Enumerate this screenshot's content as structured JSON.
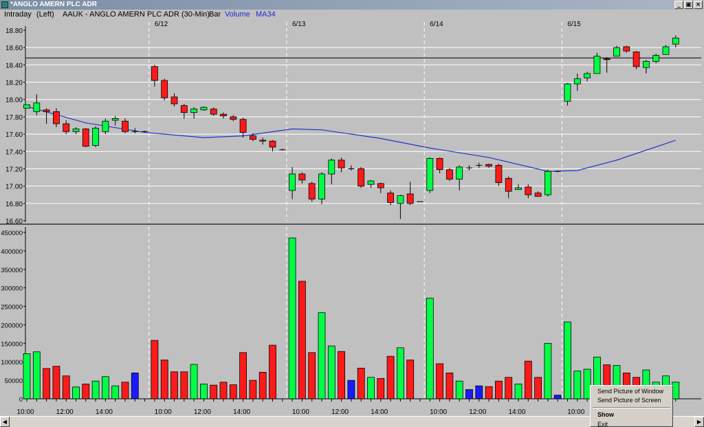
{
  "window": {
    "title": "*ANGLO AMERN PLC ADR",
    "buttons": [
      "_",
      "▣",
      "×"
    ]
  },
  "infobar": {
    "interval": "Intraday",
    "side": "(Left)",
    "symbol": "AAUK - ANGLO AMERN PLC ADR (30-Min)",
    "bar_label": "Bar",
    "volume_label": "Volume",
    "ma_label": "MA34"
  },
  "colors": {
    "up": "#00ff44",
    "down": "#ff1a1a",
    "neutral": "#1a1aff",
    "ma": "#2233cc",
    "grid": "#ffffff",
    "background": "#c0c0c0"
  },
  "chart_data": [
    {
      "type": "candlestick",
      "ylim": [
        16.6,
        18.8
      ],
      "y_ticks": [
        "18.80",
        "18.60",
        "18.40",
        "18.20",
        "18.00",
        "17.80",
        "17.60",
        "17.40",
        "17.20",
        "17.00",
        "16.80",
        "16.60"
      ],
      "tick_values": [
        18.8,
        18.6,
        18.4,
        18.2,
        18.0,
        17.8,
        17.6,
        17.4,
        17.2,
        17.0,
        16.8,
        16.6
      ],
      "date_labels": [
        {
          "label": "6/12",
          "index": 13
        },
        {
          "label": "6/13",
          "index": 27
        },
        {
          "label": "6/14",
          "index": 41
        },
        {
          "label": "6/15",
          "index": 55
        }
      ],
      "reference_line": 18.48,
      "candles": [
        [
          17.9,
          17.94,
          17.86,
          17.86
        ],
        [
          17.86,
          17.96,
          18.06,
          17.82
        ],
        [
          17.88,
          17.86,
          17.9,
          17.72
        ],
        [
          17.86,
          17.72,
          17.9,
          17.68
        ],
        [
          17.72,
          17.63,
          17.76,
          17.6
        ],
        [
          17.63,
          17.66,
          17.68,
          17.6
        ],
        [
          17.66,
          17.46,
          17.67,
          17.45
        ],
        [
          17.47,
          17.67,
          17.69,
          17.45
        ],
        [
          17.63,
          17.75,
          17.78,
          17.6
        ],
        [
          17.76,
          17.78,
          17.81,
          17.7
        ],
        [
          17.75,
          17.63,
          17.78,
          17.61
        ],
        [
          17.63,
          17.63,
          17.67,
          17.61
        ],
        [
          17.63,
          17.63,
          17.64,
          17.62
        ],
        [
          18.38,
          18.22,
          18.4,
          18.15
        ],
        [
          18.22,
          18.02,
          18.24,
          17.99
        ],
        [
          18.03,
          17.95,
          18.07,
          17.92
        ],
        [
          17.93,
          17.85,
          17.95,
          17.78
        ],
        [
          17.85,
          17.89,
          17.91,
          17.78
        ],
        [
          17.88,
          17.91,
          17.92,
          17.87
        ],
        [
          17.89,
          17.83,
          17.91,
          17.81
        ],
        [
          17.83,
          17.81,
          17.85,
          17.78
        ],
        [
          17.8,
          17.77,
          17.82,
          17.75
        ],
        [
          17.77,
          17.62,
          17.79,
          17.56
        ],
        [
          17.58,
          17.54,
          17.61,
          17.52
        ],
        [
          17.53,
          17.52,
          17.56,
          17.48
        ],
        [
          17.52,
          17.45,
          17.53,
          17.4
        ],
        [
          17.42,
          17.42,
          17.43,
          17.41
        ],
        [
          16.95,
          17.14,
          17.22,
          16.85
        ],
        [
          17.14,
          17.07,
          17.16,
          17.03
        ],
        [
          17.03,
          16.85,
          17.05,
          16.82
        ],
        [
          16.85,
          17.14,
          17.16,
          16.79
        ],
        [
          17.14,
          17.3,
          17.32,
          17.02
        ],
        [
          17.3,
          17.21,
          17.33,
          17.16
        ],
        [
          17.2,
          17.2,
          17.24,
          17.18
        ],
        [
          17.2,
          17.0,
          17.22,
          16.98
        ],
        [
          17.02,
          17.06,
          17.07,
          16.98
        ],
        [
          17.03,
          16.98,
          17.04,
          16.92
        ],
        [
          16.92,
          16.81,
          16.95,
          16.78
        ],
        [
          16.8,
          16.89,
          16.9,
          16.62
        ],
        [
          16.91,
          16.8,
          17.05,
          16.78
        ],
        [
          16.82,
          16.82,
          16.82,
          16.82
        ],
        [
          16.95,
          17.32,
          17.33,
          16.92
        ],
        [
          17.32,
          17.19,
          17.33,
          17.15
        ],
        [
          17.19,
          17.08,
          17.21,
          17.06
        ],
        [
          17.08,
          17.22,
          17.24,
          16.95
        ],
        [
          17.21,
          17.21,
          17.24,
          17.18
        ],
        [
          17.24,
          17.24,
          17.27,
          17.21
        ],
        [
          17.25,
          17.23,
          17.26,
          17.21
        ],
        [
          17.24,
          17.04,
          17.26,
          17.0
        ],
        [
          17.09,
          16.94,
          17.11,
          16.86
        ],
        [
          16.96,
          16.98,
          17.02,
          16.96
        ],
        [
          16.99,
          16.9,
          17.02,
          16.86
        ],
        [
          16.92,
          16.88,
          16.94,
          16.88
        ],
        [
          16.9,
          17.17,
          17.19,
          16.88
        ],
        [
          17.17,
          17.17,
          17.18,
          17.16
        ],
        [
          17.98,
          18.18,
          18.19,
          17.93
        ],
        [
          18.18,
          18.24,
          18.3,
          18.1
        ],
        [
          18.25,
          18.3,
          18.32,
          18.21
        ],
        [
          18.3,
          18.5,
          18.54,
          18.3
        ],
        [
          18.47,
          18.46,
          18.49,
          18.31
        ],
        [
          18.5,
          18.6,
          18.62,
          18.5
        ],
        [
          18.61,
          18.56,
          18.62,
          18.54
        ],
        [
          18.55,
          18.38,
          18.56,
          18.35
        ],
        [
          18.37,
          18.44,
          18.46,
          18.3
        ],
        [
          18.44,
          18.51,
          18.53,
          18.42
        ],
        [
          18.52,
          18.61,
          18.63,
          18.52
        ],
        [
          18.64,
          18.71,
          18.74,
          18.6
        ]
      ],
      "ma34": [
        [
          0,
          17.92
        ],
        [
          6,
          17.73
        ],
        [
          12,
          17.62
        ],
        [
          18,
          17.56
        ],
        [
          22,
          17.58
        ],
        [
          27,
          17.66
        ],
        [
          30,
          17.65
        ],
        [
          36,
          17.55
        ],
        [
          41,
          17.44
        ],
        [
          47,
          17.33
        ],
        [
          53,
          17.17
        ],
        [
          56,
          17.18
        ],
        [
          60,
          17.3
        ],
        [
          66,
          17.53
        ]
      ]
    },
    {
      "type": "bar",
      "ylim": [
        0,
        450000
      ],
      "y_ticks": [
        "450000",
        "400000",
        "350000",
        "300000",
        "250000",
        "200000",
        "150000",
        "100000",
        "50000",
        "0"
      ],
      "tick_values": [
        450000,
        400000,
        350000,
        300000,
        250000,
        200000,
        150000,
        100000,
        50000,
        0
      ],
      "x_ticks": [
        {
          "label": "10:00",
          "index": 0
        },
        {
          "label": "12:00",
          "index": 4
        },
        {
          "label": "14:00",
          "index": 8
        },
        {
          "label": "10:00",
          "index": 14
        },
        {
          "label": "12:00",
          "index": 18
        },
        {
          "label": "14:00",
          "index": 22
        },
        {
          "label": "10:00",
          "index": 28
        },
        {
          "label": "12:00",
          "index": 32
        },
        {
          "label": "14:00",
          "index": 36
        },
        {
          "label": "10:00",
          "index": 42
        },
        {
          "label": "12:00",
          "index": 46
        },
        {
          "label": "14:00",
          "index": 50
        },
        {
          "label": "10:00",
          "index": 56
        }
      ],
      "volumes": [
        122000,
        127000,
        82000,
        88000,
        62000,
        32000,
        40000,
        48000,
        60000,
        35000,
        45000,
        70000,
        0,
        158000,
        105000,
        73000,
        73000,
        93000,
        40000,
        37000,
        45000,
        38000,
        125000,
        50000,
        72000,
        145000,
        0,
        435000,
        318000,
        125000,
        233000,
        143000,
        128000,
        50000,
        83000,
        58000,
        55000,
        115000,
        138000,
        105000,
        0,
        272000,
        95000,
        70000,
        48000,
        25000,
        35000,
        33000,
        48000,
        58000,
        40000,
        102000,
        58000,
        150000,
        10000,
        208000,
        75000,
        80000,
        113000,
        92000,
        90000,
        70000,
        58000,
        78000,
        45000,
        62000,
        45000
      ]
    }
  ],
  "context_menu": {
    "items": [
      "Send Picture of Window",
      "Send Picture of Screen",
      "Show",
      "Exit"
    ]
  },
  "scrollbar": {
    "left_arrow": "◀",
    "right_arrow": "▶"
  }
}
